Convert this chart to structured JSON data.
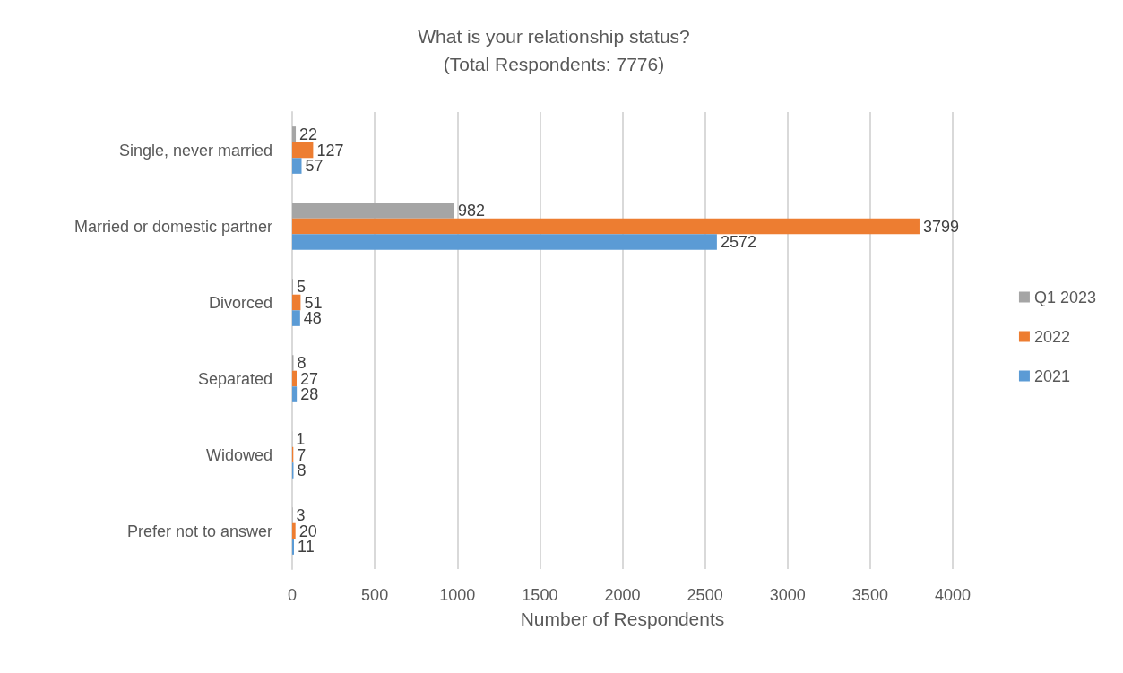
{
  "chart_data": {
    "type": "bar",
    "orientation": "horizontal",
    "title": "What is your relationship status?",
    "subtitle": "(Total Respondents: 7776)",
    "xlabel": "Number of Respondents",
    "categories": [
      "Single, never married",
      "Married or domestic partner",
      "Divorced",
      "Separated",
      "Widowed",
      "Prefer not to answer"
    ],
    "series": [
      {
        "name": "Q1 2023",
        "color": "#a5a5a5",
        "values": [
          22,
          982,
          5,
          8,
          1,
          3
        ]
      },
      {
        "name": "2022",
        "color": "#ed7d31",
        "values": [
          127,
          3799,
          51,
          27,
          7,
          20
        ]
      },
      {
        "name": "2021",
        "color": "#5b9bd5",
        "values": [
          57,
          2572,
          48,
          28,
          8,
          11
        ]
      }
    ],
    "xlim": [
      0,
      4000
    ],
    "xticks": [
      0,
      500,
      1000,
      1500,
      2000,
      2500,
      3000,
      3500,
      4000
    ],
    "grid": "x",
    "legend": "right",
    "data_labels": true
  }
}
